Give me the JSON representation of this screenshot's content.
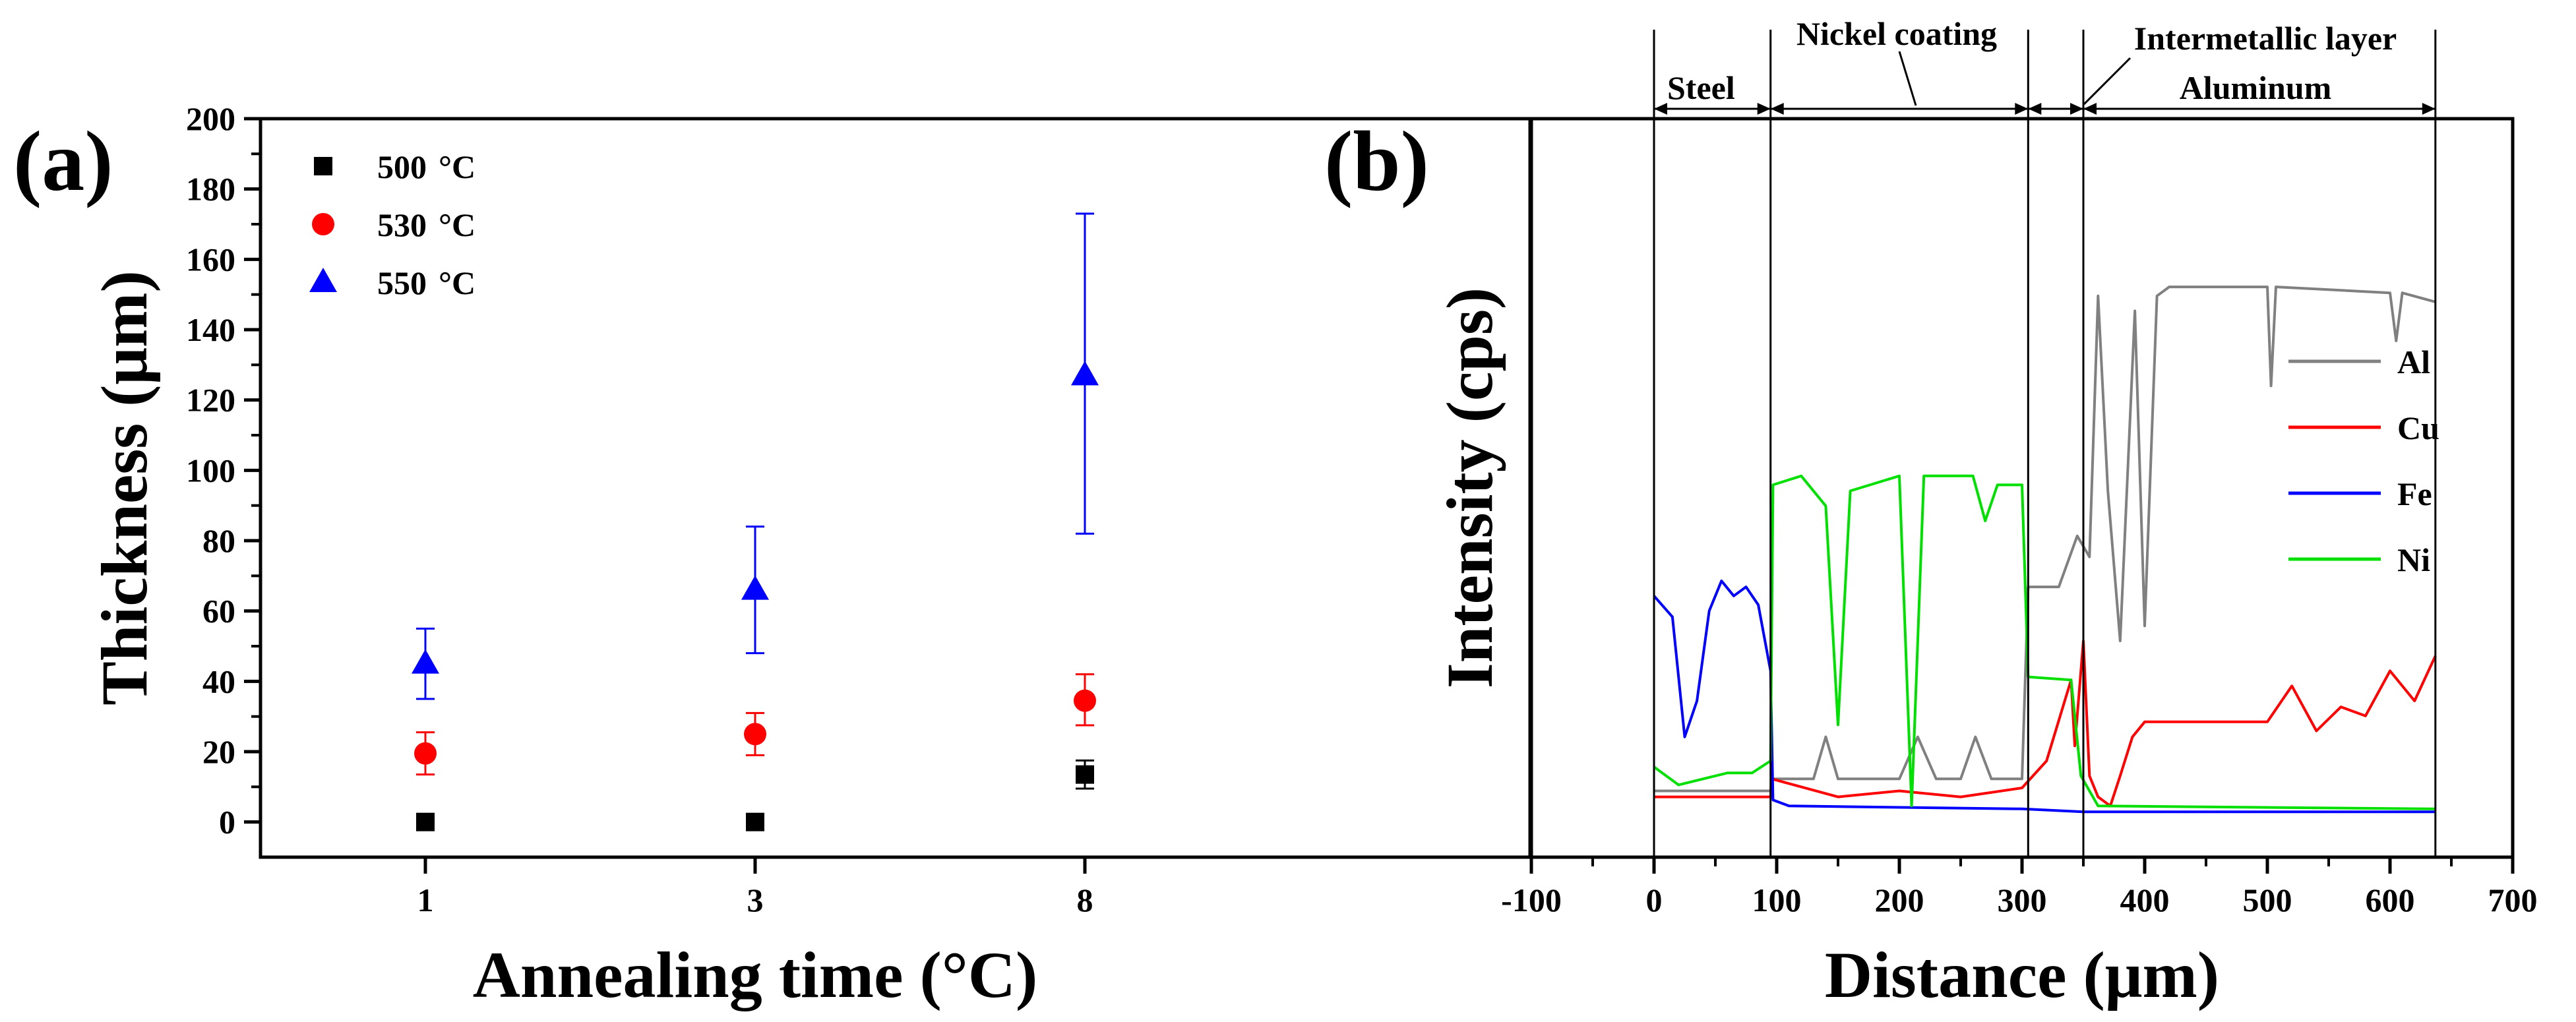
{
  "chart_data": [
    {
      "type": "scatter",
      "panel_label": "(a)",
      "xlabel": "Annealing time (°C)",
      "ylabel": "Thickness (μm)",
      "ylim": [
        -10,
        200
      ],
      "x_categories": [
        "1",
        "3",
        "8"
      ],
      "y_ticks": [
        "0",
        "20",
        "40",
        "60",
        "80",
        "100",
        "120",
        "140",
        "160",
        "180",
        "200"
      ],
      "legend_position": "top-left",
      "series": [
        {
          "name": "500 °C",
          "label_value": "500",
          "label_unit": "°C",
          "marker": "square",
          "color": "#000000",
          "values": [
            0,
            0,
            13.5
          ],
          "err_low": [
            0,
            0,
            4
          ],
          "err_high": [
            0,
            0,
            4
          ]
        },
        {
          "name": "530 °C",
          "label_value": "530",
          "label_unit": "°C",
          "marker": "circle",
          "color": "#ff0000",
          "values": [
            19.5,
            25,
            34.5
          ],
          "err_low": [
            6,
            6,
            7
          ],
          "err_high": [
            6,
            6,
            7.5
          ]
        },
        {
          "name": "550 °C",
          "label_value": "550",
          "label_unit": "°C",
          "marker": "triangle",
          "color": "#0000ff",
          "values": [
            45,
            66,
            127
          ],
          "err_low": [
            10,
            18,
            45
          ],
          "err_high": [
            10,
            18,
            46
          ]
        }
      ]
    },
    {
      "type": "line",
      "panel_label": "(b)",
      "xlabel": "Distance (μm)",
      "ylabel": "Intensity (cps)",
      "xlim": [
        -100,
        700
      ],
      "x_ticks": [
        "-100",
        "0",
        "100",
        "200",
        "300",
        "400",
        "500",
        "600",
        "700"
      ],
      "y_tick_labels": "none",
      "legend_position": "right",
      "region_boundaries": [
        0,
        95,
        305,
        350,
        637
      ],
      "regions": [
        {
          "label": "Steel",
          "from": 0,
          "to": 95
        },
        {
          "label": "Nickel coating",
          "from": 95,
          "to": 305
        },
        {
          "label": "Intermetallic layer",
          "from": 305,
          "to": 350
        },
        {
          "label": "Aluminum",
          "from": 350,
          "to": 637
        }
      ],
      "series": [
        {
          "name": "Al",
          "color": "#808080",
          "points": [
            [
              0,
              10
            ],
            [
              95,
              10
            ],
            [
              96,
              14
            ],
            [
              130,
              14
            ],
            [
              140,
              28
            ],
            [
              150,
              14
            ],
            [
              200,
              14
            ],
            [
              215,
              28
            ],
            [
              230,
              14
            ],
            [
              250,
              14
            ],
            [
              262,
              28
            ],
            [
              275,
              14
            ],
            [
              300,
              14
            ],
            [
              305,
              78
            ],
            [
              330,
              78
            ],
            [
              345,
              95
            ],
            [
              355,
              88
            ],
            [
              362,
              175
            ],
            [
              370,
              110
            ],
            [
              380,
              60
            ],
            [
              392,
              170
            ],
            [
              400,
              65
            ],
            [
              410,
              175
            ],
            [
              420,
              178
            ],
            [
              500,
              178
            ],
            [
              503,
              145
            ],
            [
              507,
              178
            ],
            [
              600,
              176
            ],
            [
              605,
              160
            ],
            [
              610,
              176
            ],
            [
              637,
              173
            ]
          ]
        },
        {
          "name": "Cu",
          "color": "#ff0000",
          "points": [
            [
              0,
              8
            ],
            [
              95,
              8
            ],
            [
              96,
              14
            ],
            [
              150,
              8
            ],
            [
              200,
              10
            ],
            [
              250,
              8
            ],
            [
              300,
              11
            ],
            [
              320,
              20
            ],
            [
              340,
              47
            ],
            [
              343,
              25
            ],
            [
              350,
              60
            ],
            [
              355,
              15
            ],
            [
              362,
              8
            ],
            [
              372,
              5
            ],
            [
              380,
              15
            ],
            [
              390,
              28
            ],
            [
              400,
              33
            ],
            [
              500,
              33
            ],
            [
              520,
              45
            ],
            [
              540,
              30
            ],
            [
              560,
              38
            ],
            [
              580,
              35
            ],
            [
              600,
              50
            ],
            [
              620,
              40
            ],
            [
              637,
              55
            ]
          ]
        },
        {
          "name": "Fe",
          "color": "#0000ff",
          "points": [
            [
              0,
              75
            ],
            [
              15,
              68
            ],
            [
              25,
              28
            ],
            [
              35,
              40
            ],
            [
              45,
              70
            ],
            [
              55,
              80
            ],
            [
              65,
              75
            ],
            [
              75,
              78
            ],
            [
              85,
              72
            ],
            [
              95,
              50
            ],
            [
              97,
              7
            ],
            [
              110,
              5
            ],
            [
              300,
              4
            ],
            [
              350,
              3
            ],
            [
              637,
              3
            ]
          ]
        },
        {
          "name": "Ni",
          "color": "#00e000",
          "points": [
            [
              0,
              18
            ],
            [
              20,
              12
            ],
            [
              40,
              14
            ],
            [
              60,
              16
            ],
            [
              80,
              16
            ],
            [
              95,
              20
            ],
            [
              97,
              112
            ],
            [
              120,
              115
            ],
            [
              140,
              105
            ],
            [
              150,
              32
            ],
            [
              160,
              110
            ],
            [
              200,
              115
            ],
            [
              210,
              5
            ],
            [
              220,
              115
            ],
            [
              260,
              115
            ],
            [
              270,
              100
            ],
            [
              280,
              112
            ],
            [
              300,
              112
            ],
            [
              305,
              48
            ],
            [
              340,
              47
            ],
            [
              348,
              15
            ],
            [
              362,
              5
            ],
            [
              637,
              4
            ]
          ]
        }
      ]
    }
  ]
}
